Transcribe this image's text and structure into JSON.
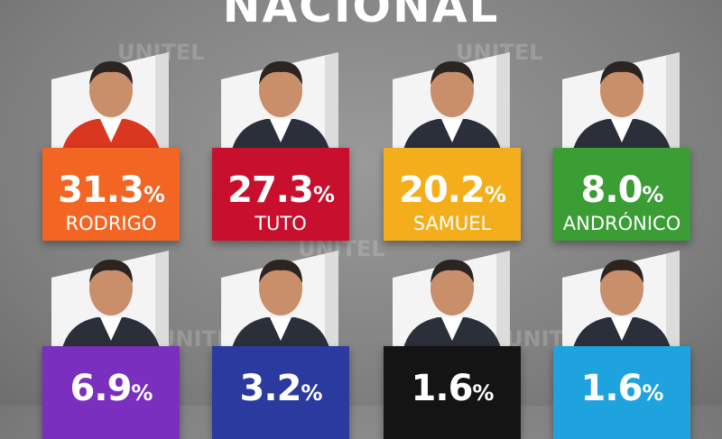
{
  "header": {
    "title": "NACIONAL",
    "watermark": "UNITEL"
  },
  "candidates": [
    {
      "name": "RODRIGO",
      "value": 31.3,
      "unit": "%",
      "color": "#f26522"
    },
    {
      "name": "TUTO",
      "value": 27.3,
      "unit": "%",
      "color": "#c8102e"
    },
    {
      "name": "SAMUEL",
      "value": 20.2,
      "unit": "%",
      "color": "#f5ae1b"
    },
    {
      "name": "ANDRÓNICO",
      "value": 8.0,
      "value_label": "8.0",
      "unit": "%",
      "color": "#3a9e35"
    },
    {
      "value": 6.9,
      "unit": "%",
      "color": "#7a2fbf"
    },
    {
      "value": 3.2,
      "unit": "%",
      "color": "#2b3a9e"
    },
    {
      "value": 1.6,
      "unit": "%",
      "color": "#141414"
    },
    {
      "value": 1.6,
      "unit": "%",
      "color": "#1ea3de"
    }
  ]
}
